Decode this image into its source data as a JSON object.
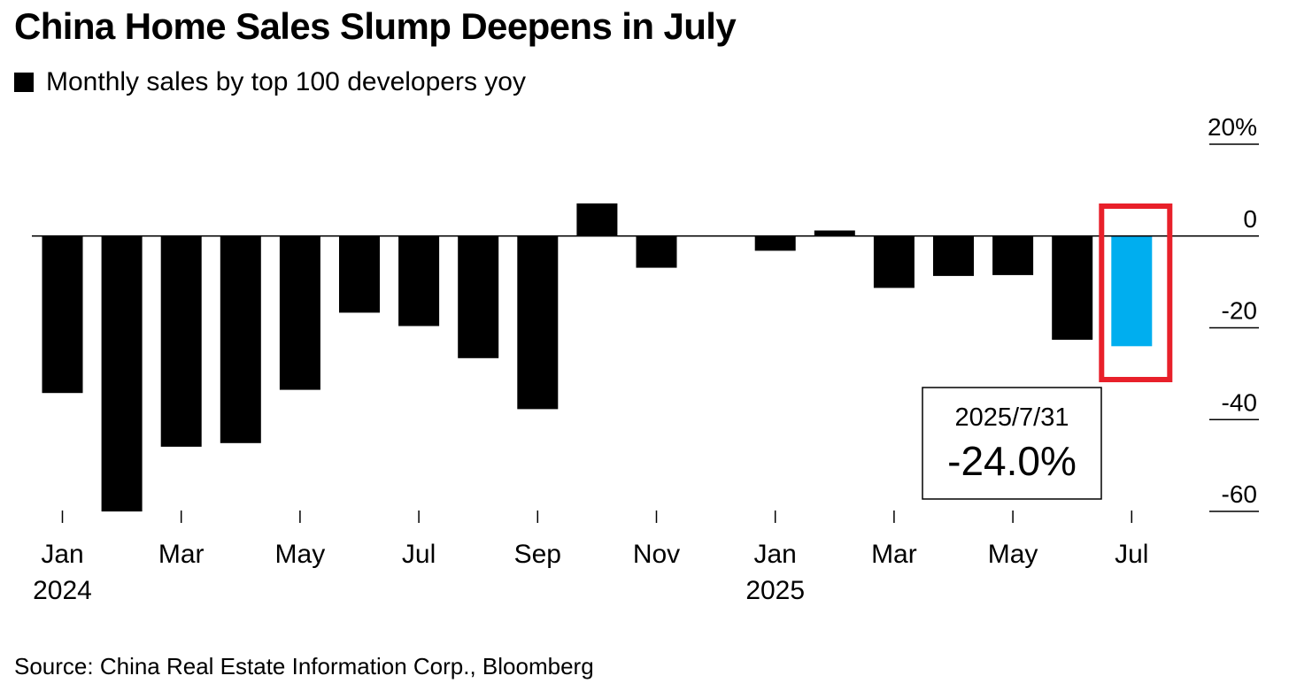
{
  "chart_data": {
    "type": "bar",
    "title": "China Home Sales Slump Deepens in July",
    "legend": {
      "label": "Monthly sales by top 100 developers yoy",
      "color": "#000000"
    },
    "source": "Source: China Real Estate Information Corp., Bloomberg",
    "categories": [
      "Jan 2024",
      "Feb 2024",
      "Mar 2024",
      "Apr 2024",
      "May 2024",
      "Jun 2024",
      "Jul 2024",
      "Aug 2024",
      "Sep 2024",
      "Oct 2024",
      "Nov 2024",
      "Dec 2024",
      "Jan 2025",
      "Feb 2025",
      "Mar 2025",
      "Apr 2025",
      "May 2025",
      "Jun 2025",
      "Jul 2025"
    ],
    "values": [
      -34.2,
      -60.0,
      -45.9,
      -45.1,
      -33.5,
      -16.7,
      -19.6,
      -26.6,
      -37.7,
      7.1,
      -6.9,
      0.0,
      -3.2,
      1.2,
      -11.3,
      -8.7,
      -8.5,
      -22.6,
      -24.0
    ],
    "bar_colors": [
      "#000000",
      "#000000",
      "#000000",
      "#000000",
      "#000000",
      "#000000",
      "#000000",
      "#000000",
      "#000000",
      "#000000",
      "#000000",
      "#000000",
      "#000000",
      "#000000",
      "#000000",
      "#000000",
      "#000000",
      "#000000",
      "#00AEEF"
    ],
    "x_tick_labels": [
      "Jan",
      "Mar",
      "May",
      "Jul",
      "Sep",
      "Nov",
      "Jan",
      "Mar",
      "May",
      "Jul"
    ],
    "x_tick_index": [
      0,
      2,
      4,
      6,
      8,
      10,
      12,
      14,
      16,
      18
    ],
    "x_year_labels": [
      "2024",
      "2025"
    ],
    "x_year_index": [
      0,
      12
    ],
    "y_ticks": [
      20,
      0,
      -20,
      -40,
      -60
    ],
    "y_tick_labels": [
      "20%",
      "0",
      "-20",
      "-40",
      "-60"
    ],
    "ylim": [
      -60,
      20
    ],
    "xlabel": "",
    "ylabel": "",
    "highlight": {
      "index": 18,
      "box_color": "#E8202A",
      "date": "2025/7/31",
      "value_label": "-24.0%"
    }
  }
}
